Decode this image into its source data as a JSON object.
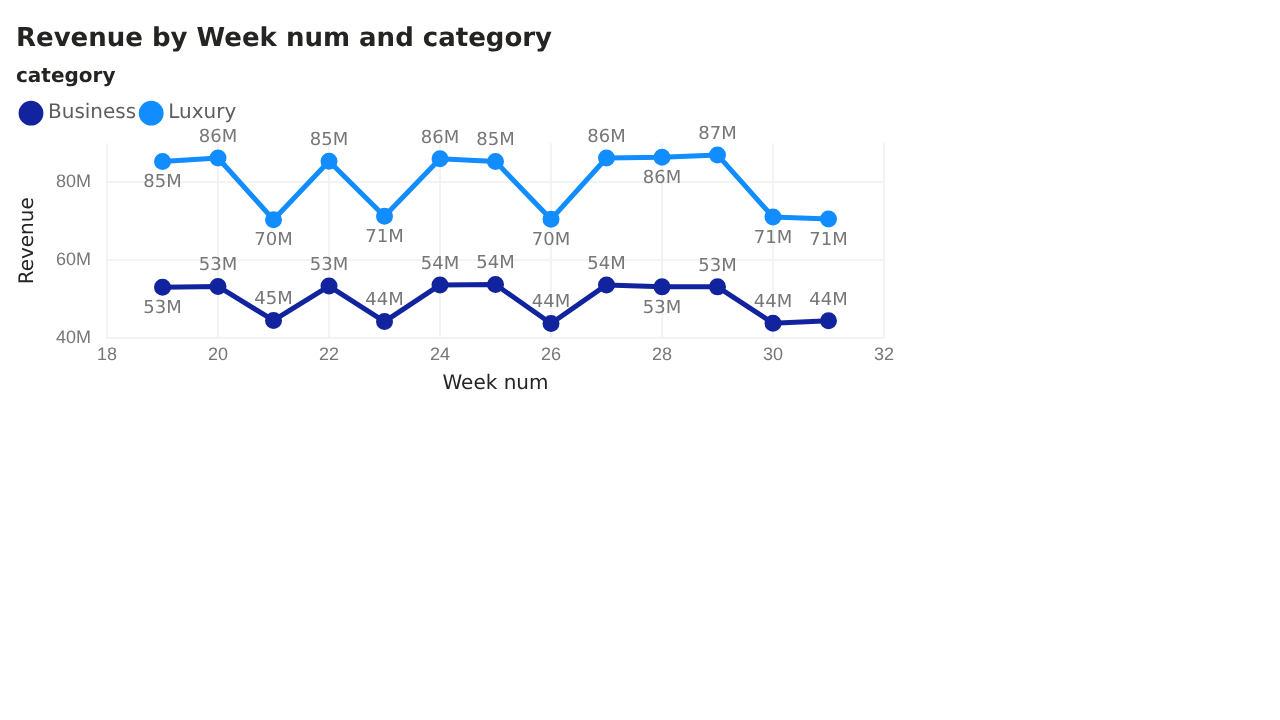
{
  "chart_data": {
    "type": "line",
    "title": "Revenue by Week num and category",
    "xlabel": "Week num",
    "ylabel": "Revenue",
    "legend_title": "category",
    "legend": "top left",
    "grid": true,
    "marker": "circle",
    "line_style": "solid",
    "x": [
      19,
      20,
      21,
      22,
      23,
      24,
      25,
      26,
      27,
      28,
      29,
      30,
      31
    ],
    "xlim": [
      18,
      32
    ],
    "xticks": [
      18,
      20,
      22,
      24,
      26,
      28,
      30,
      32
    ],
    "ylim": [
      40,
      90
    ],
    "yticks": [
      {
        "value": 40,
        "label": "40M"
      },
      {
        "value": 60,
        "label": "60M"
      },
      {
        "value": 80,
        "label": "80M"
      }
    ],
    "series": [
      {
        "name": "Business",
        "color": "#12239e",
        "values": [
          53.1,
          53.3,
          44.6,
          53.4,
          44.3,
          53.7,
          53.8,
          43.8,
          53.7,
          53.2,
          53.2,
          43.9,
          44.5
        ],
        "value_labels": [
          "53M",
          "53M",
          "45M",
          "53M",
          "44M",
          "54M",
          "54M",
          "44M",
          "54M",
          "53M",
          "53M",
          "44M",
          "44M"
        ]
      },
      {
        "name": "Luxury",
        "color": "#118dff",
        "values": [
          85.3,
          86.2,
          70.4,
          85.4,
          71.3,
          86.0,
          85.3,
          70.5,
          86.2,
          86.4,
          87.0,
          71.1,
          70.6
        ],
        "value_labels": [
          "85M",
          "86M",
          "70M",
          "85M",
          "71M",
          "86M",
          "85M",
          "70M",
          "86M",
          "86M",
          "87M",
          "71M",
          "71M"
        ]
      }
    ]
  }
}
